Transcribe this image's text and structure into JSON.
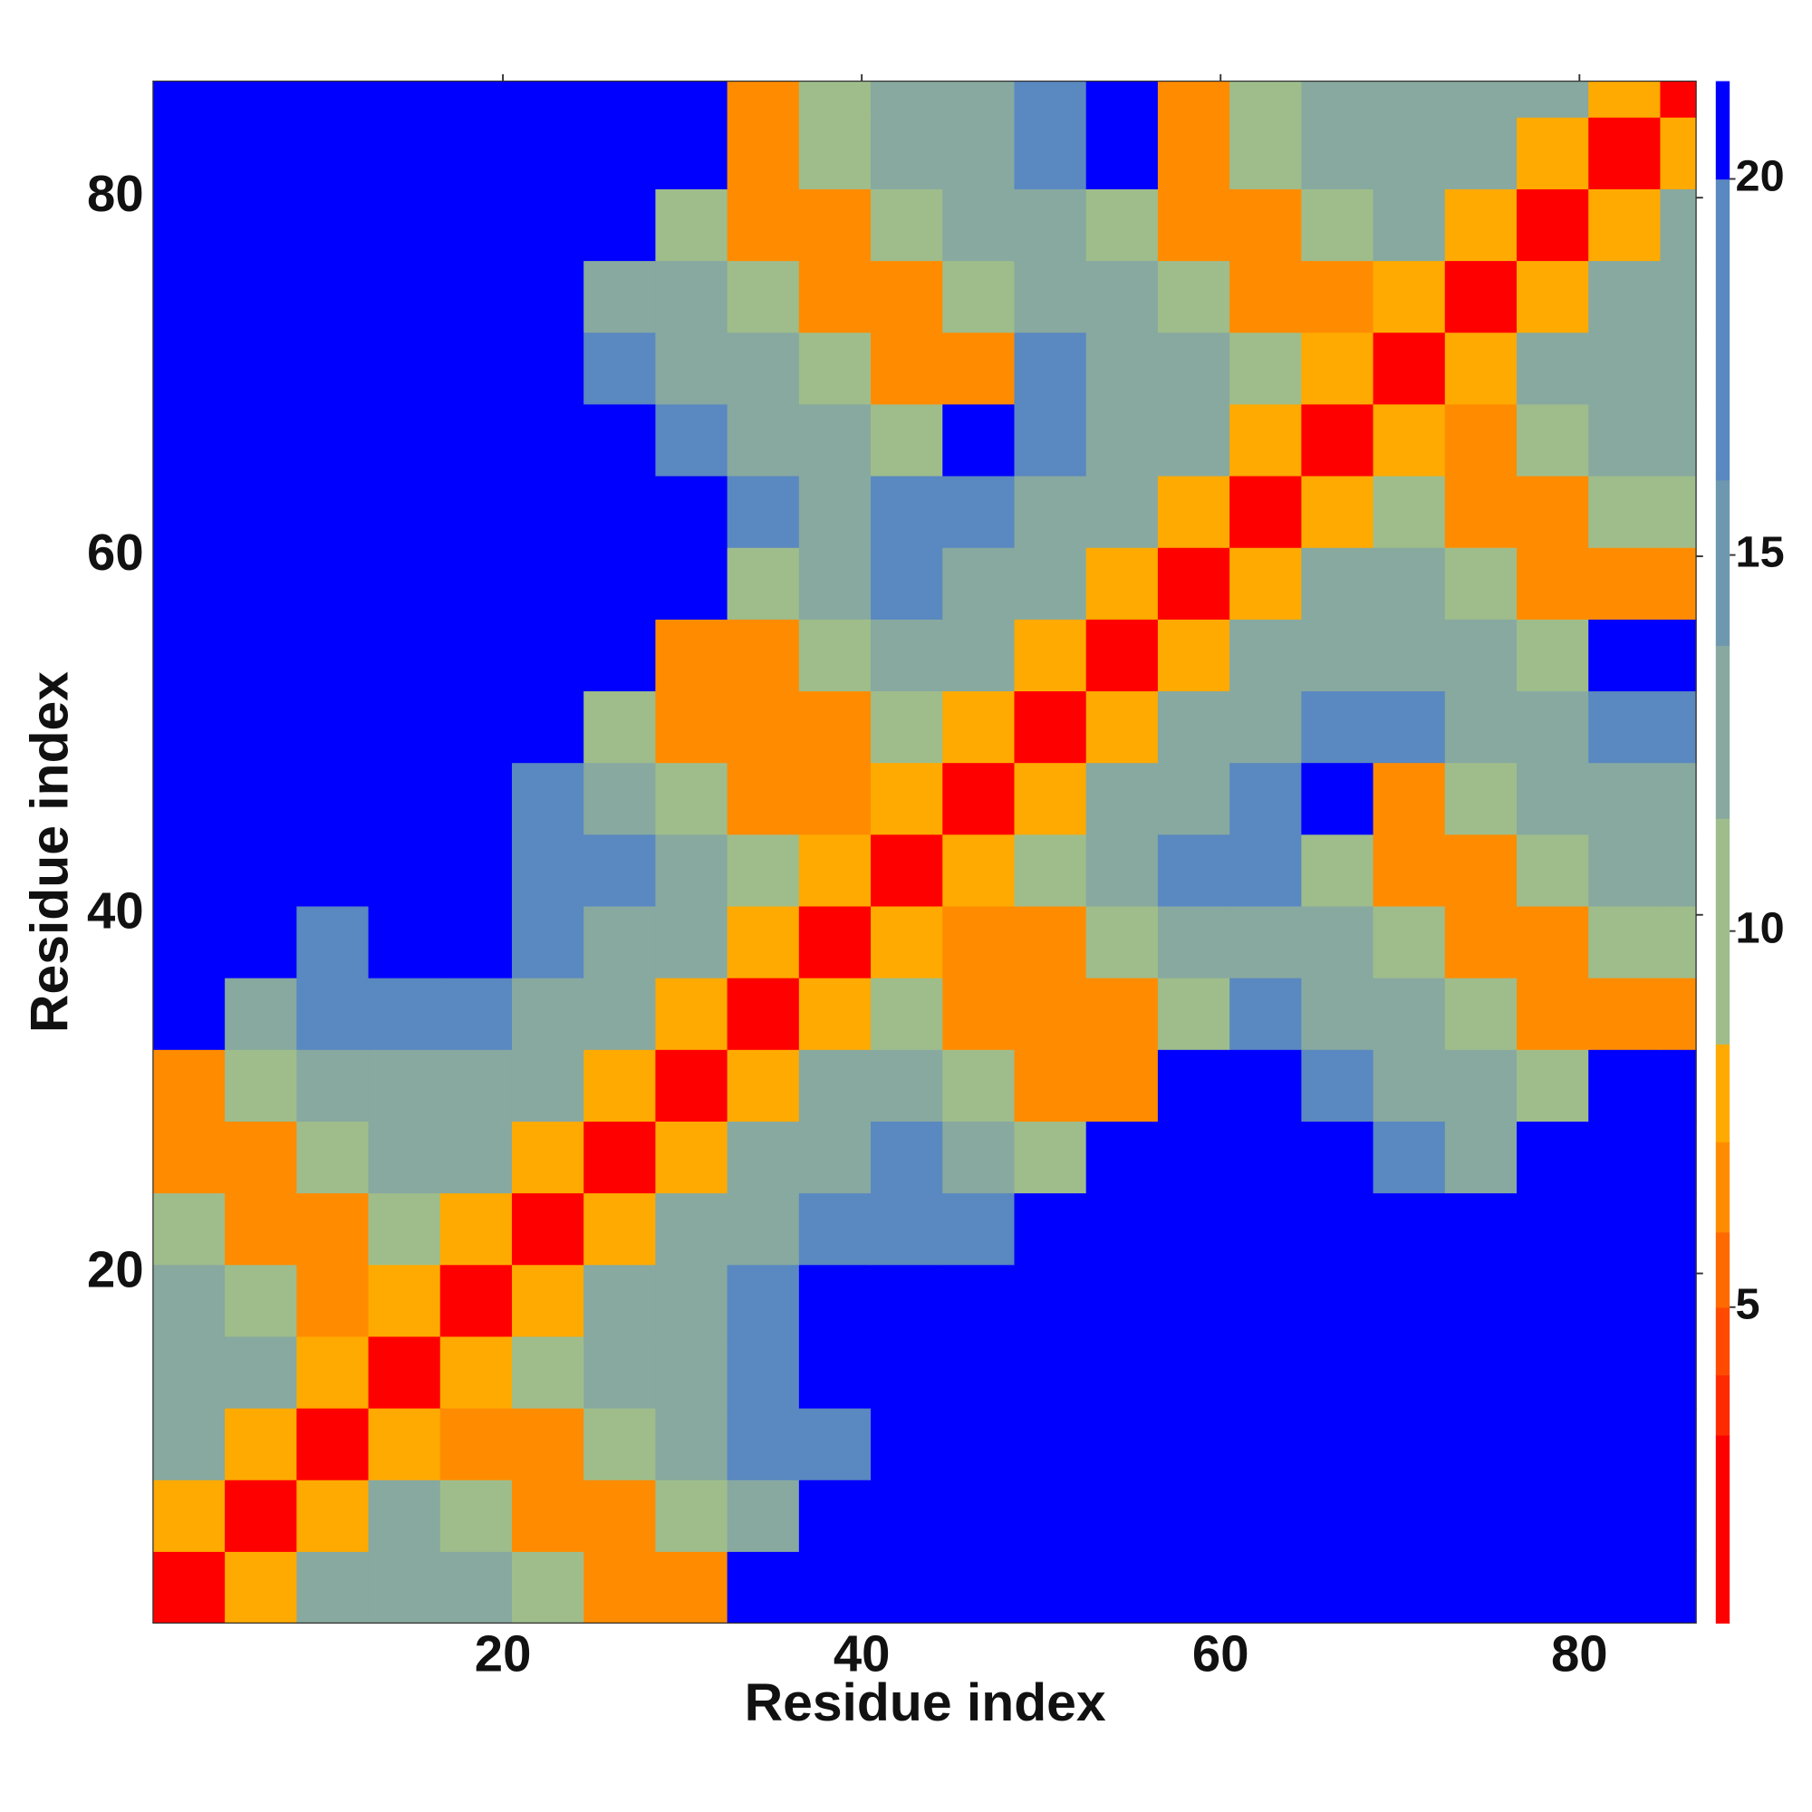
{
  "chart_data": {
    "type": "heatmap",
    "x_label": "Residue index",
    "y_label": "Residue index",
    "x_bins": [
      0.5,
      4.5,
      8.5,
      12.5,
      16.5,
      20.5,
      24.5,
      28.5,
      32.5,
      36.5,
      40.5,
      44.5,
      48.5,
      52.5,
      56.5,
      60.5,
      64.5,
      68.5,
      72.5,
      76.5,
      80.5,
      84.5,
      86.5
    ],
    "y_bins": [
      0.5,
      4.5,
      8.5,
      12.5,
      16.5,
      20.5,
      24.5,
      28.5,
      32.5,
      36.5,
      40.5,
      44.5,
      48.5,
      52.5,
      56.5,
      60.5,
      64.5,
      68.5,
      72.5,
      76.5,
      80.5,
      84.5,
      86.5
    ],
    "xlim": [
      0.5,
      86.5
    ],
    "ylim": [
      0.5,
      86.5
    ],
    "xticks": [
      20,
      40,
      60,
      80
    ],
    "yticks": [
      20,
      40,
      60,
      80
    ],
    "values": [
      [
        3,
        8,
        13,
        13,
        13,
        10,
        7,
        7,
        21,
        21,
        21,
        21,
        21,
        21,
        21,
        21,
        21,
        21,
        21,
        21,
        21,
        21
      ],
      [
        8,
        3,
        8,
        13,
        10,
        7,
        7,
        10,
        13,
        21,
        21,
        21,
        21,
        21,
        21,
        21,
        21,
        21,
        21,
        21,
        21,
        21
      ],
      [
        13,
        8,
        3,
        8,
        7,
        7,
        10,
        13,
        17,
        17,
        21,
        21,
        21,
        21,
        21,
        21,
        21,
        21,
        21,
        21,
        21,
        21
      ],
      [
        13,
        13,
        8,
        3,
        8,
        10,
        13,
        13,
        17,
        21,
        21,
        21,
        21,
        21,
        21,
        21,
        21,
        21,
        21,
        21,
        21,
        21
      ],
      [
        13,
        10,
        7,
        8,
        3,
        8,
        13,
        13,
        17,
        21,
        21,
        21,
        21,
        21,
        21,
        21,
        21,
        21,
        21,
        21,
        21,
        21
      ],
      [
        10,
        7,
        7,
        10,
        8,
        3,
        8,
        13,
        13,
        17,
        17,
        17,
        21,
        21,
        21,
        21,
        21,
        21,
        21,
        21,
        21,
        21
      ],
      [
        7,
        7,
        10,
        13,
        13,
        8,
        3,
        8,
        13,
        13,
        17,
        13,
        10,
        21,
        21,
        21,
        21,
        17,
        13,
        21,
        21,
        21
      ],
      [
        7,
        10,
        13,
        13,
        13,
        13,
        8,
        3,
        8,
        13,
        13,
        10,
        7,
        7,
        21,
        21,
        17,
        13,
        13,
        10,
        21,
        21
      ],
      [
        21,
        13,
        17,
        17,
        17,
        13,
        13,
        8,
        3,
        8,
        10,
        7,
        7,
        7,
        10,
        17,
        13,
        13,
        10,
        7,
        7,
        7
      ],
      [
        21,
        21,
        17,
        21,
        21,
        17,
        13,
        13,
        8,
        3,
        8,
        7,
        7,
        10,
        13,
        13,
        13,
        10,
        7,
        7,
        10,
        10
      ],
      [
        21,
        21,
        21,
        21,
        21,
        17,
        17,
        13,
        10,
        8,
        3,
        8,
        10,
        13,
        17,
        17,
        10,
        7,
        7,
        10,
        13,
        13
      ],
      [
        21,
        21,
        21,
        21,
        21,
        17,
        13,
        10,
        7,
        7,
        8,
        3,
        8,
        13,
        13,
        17,
        21,
        7,
        10,
        13,
        13,
        13
      ],
      [
        21,
        21,
        21,
        21,
        21,
        21,
        10,
        7,
        7,
        7,
        10,
        8,
        3,
        8,
        13,
        13,
        17,
        17,
        13,
        13,
        17,
        17
      ],
      [
        21,
        21,
        21,
        21,
        21,
        21,
        21,
        7,
        7,
        10,
        13,
        13,
        8,
        3,
        8,
        13,
        13,
        13,
        13,
        10,
        21,
        21
      ],
      [
        21,
        21,
        21,
        21,
        21,
        21,
        21,
        21,
        10,
        13,
        17,
        13,
        13,
        8,
        3,
        8,
        13,
        13,
        10,
        7,
        7,
        7
      ],
      [
        21,
        21,
        21,
        21,
        21,
        21,
        21,
        21,
        17,
        13,
        17,
        17,
        13,
        13,
        8,
        3,
        8,
        10,
        7,
        7,
        10,
        10
      ],
      [
        21,
        21,
        21,
        21,
        21,
        21,
        21,
        17,
        13,
        13,
        10,
        21,
        17,
        13,
        13,
        8,
        3,
        8,
        7,
        10,
        13,
        13
      ],
      [
        21,
        21,
        21,
        21,
        21,
        21,
        17,
        13,
        13,
        10,
        7,
        7,
        17,
        13,
        13,
        10,
        8,
        3,
        8,
        13,
        13,
        13
      ],
      [
        21,
        21,
        21,
        21,
        21,
        21,
        13,
        13,
        10,
        7,
        7,
        10,
        13,
        13,
        10,
        7,
        7,
        8,
        3,
        8,
        13,
        13
      ],
      [
        21,
        21,
        21,
        21,
        21,
        21,
        21,
        10,
        7,
        7,
        10,
        13,
        13,
        10,
        7,
        7,
        10,
        13,
        8,
        3,
        8,
        13
      ],
      [
        21,
        21,
        21,
        21,
        21,
        21,
        21,
        21,
        7,
        10,
        13,
        13,
        17,
        21,
        7,
        10,
        13,
        13,
        13,
        8,
        3,
        8
      ],
      [
        21,
        21,
        21,
        21,
        21,
        21,
        21,
        21,
        7,
        10,
        13,
        13,
        17,
        21,
        7,
        10,
        13,
        13,
        13,
        13,
        8,
        3
      ]
    ],
    "colorbar": {
      "lim": [
        0.8,
        21.3
      ],
      "ticks": [
        5,
        10,
        15,
        20
      ],
      "bounds": [
        0.8,
        3.3,
        4.1,
        5,
        6,
        7.2,
        8.5,
        11.5,
        13.8,
        16,
        20,
        21.3
      ],
      "colors": [
        "#ff0000",
        "#ff2a00",
        "#ff4a00",
        "#ff6a00",
        "#ff8c00",
        "#ffaa00",
        "#9fbd8b",
        "#87a9a0",
        "#6e98b0",
        "#5a88c0",
        "#0000ff"
      ]
    }
  }
}
